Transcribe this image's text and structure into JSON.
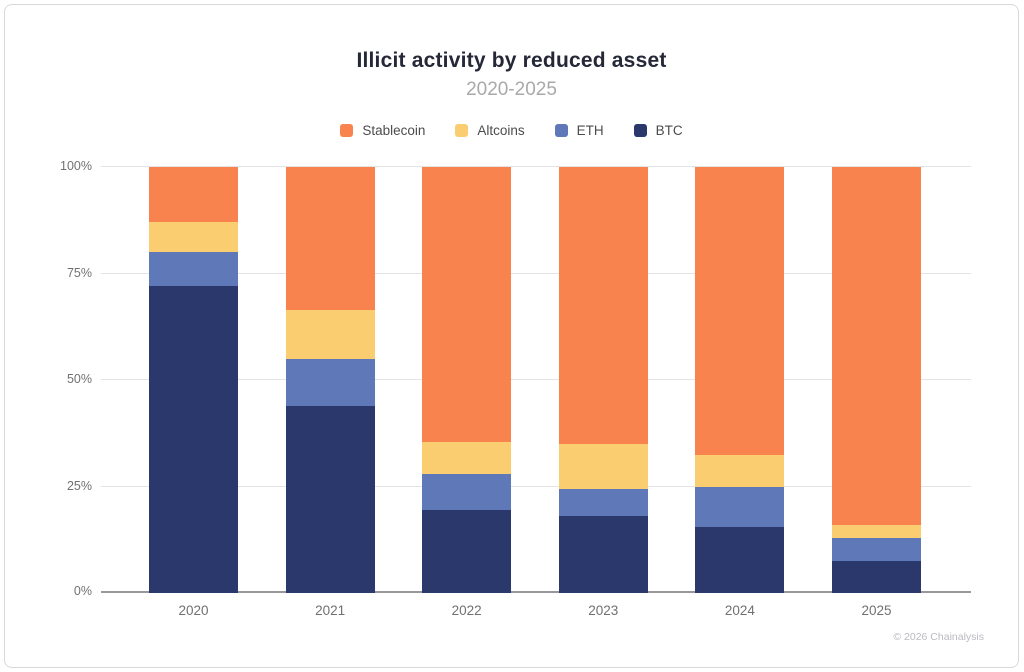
{
  "attribution": "© 2026 Chainalysis",
  "chart_data": {
    "type": "bar",
    "stacked": true,
    "title": "Illicit activity by reduced asset",
    "subtitle": "2020-2025",
    "categories": [
      "2020",
      "2021",
      "2022",
      "2023",
      "2024",
      "2025"
    ],
    "series": [
      {
        "name": "Stablecoin",
        "color": "#f9834e",
        "values": [
          13,
          33.5,
          64.5,
          65,
          67.5,
          84
        ]
      },
      {
        "name": "Altcoins",
        "color": "#f9cd70",
        "values": [
          7,
          11.5,
          7.5,
          10.5,
          7.5,
          3
        ]
      },
      {
        "name": "ETH",
        "color": "#5e78b8",
        "values": [
          8,
          11,
          8.5,
          6.5,
          9.5,
          5.5
        ]
      },
      {
        "name": "BTC",
        "color": "#2a386b",
        "values": [
          72,
          44,
          19.5,
          18,
          15.5,
          7.5
        ]
      }
    ],
    "xlabel": "",
    "ylabel": "",
    "ylim": [
      0,
      100
    ],
    "y_ticks": [
      {
        "label": "0%",
        "value": 0
      },
      {
        "label": "25%",
        "value": 25
      },
      {
        "label": "50%",
        "value": 50
      },
      {
        "label": "75%",
        "value": 75
      },
      {
        "label": "100%",
        "value": 100
      }
    ],
    "grid": true,
    "legend_position": "top"
  }
}
